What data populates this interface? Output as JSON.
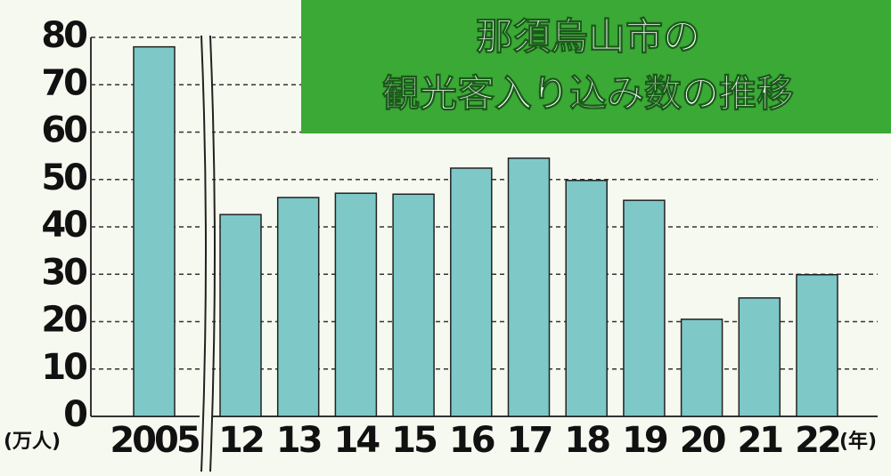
{
  "chart_data": {
    "type": "bar",
    "title": [
      "那須烏山市の",
      "観光客入り込み数の推移"
    ],
    "y_unit": "(万人)",
    "x_unit": "(年)",
    "categories": [
      "2005",
      "12",
      "13",
      "14",
      "15",
      "16",
      "17",
      "18",
      "19",
      "20",
      "21",
      "22"
    ],
    "values": [
      78,
      42.6,
      46.2,
      47.1,
      46.9,
      52.4,
      54.5,
      49.8,
      45.6,
      20.5,
      25,
      29.9
    ],
    "color": "#7ec8c8",
    "ylim": [
      0,
      80
    ],
    "yticks": [
      0,
      10,
      20,
      30,
      40,
      50,
      60,
      70,
      80
    ],
    "grid": true
  }
}
